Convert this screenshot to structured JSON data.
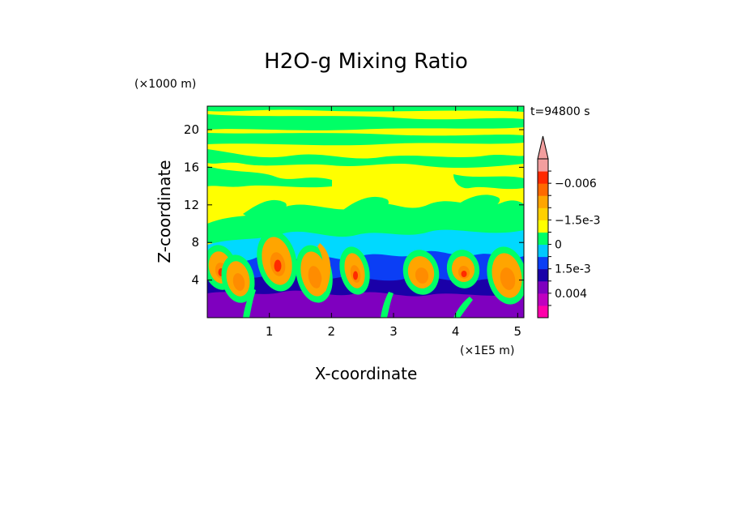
{
  "chart_data": {
    "type": "heatmap",
    "title": "H2O-g Mixing Ratio",
    "xlabel": "X-coordinate",
    "ylabel": "Z-coordinate",
    "x_scale_label": "(×1E5 m)",
    "y_scale_label": "(×1000 m)",
    "time_label": "t=94800 s",
    "x_ticks": [
      "1",
      "2",
      "3",
      "4",
      "5"
    ],
    "y_ticks": [
      "4",
      "8",
      "12",
      "16",
      "20"
    ],
    "x_tick_values": [
      1,
      2,
      3,
      4,
      5
    ],
    "y_tick_values": [
      4,
      8,
      12,
      16,
      20
    ],
    "xlim": [
      0,
      5.1
    ],
    "ylim": [
      0,
      22.5
    ],
    "colorbar": {
      "label_texts": [
        "0.004",
        "1.5e-3",
        "0",
        "−1.5e-3",
        "−0.006"
      ],
      "label_band": [
        2,
        4,
        6,
        8,
        11
      ],
      "bands": [
        "#ff00aa",
        "#c000c0",
        "#7f00bf",
        "#1a00a8",
        "#0b3ef5",
        "#00c8ff",
        "#00ff66",
        "#ffff00",
        "#ffd000",
        "#ffa500",
        "#ff6a00",
        "#ff2a00",
        "#f29e9e"
      ]
    },
    "field_colors": {
      "yellow": "#ffff00",
      "green": "#00ff66",
      "cyan": "#00d9ff",
      "blue": "#0b3ef5",
      "navy": "#1a00a8",
      "purple": "#7f00bf",
      "orange": "#ffa500",
      "darkorange": "#ff8c00",
      "red": "#ff2a00"
    }
  }
}
